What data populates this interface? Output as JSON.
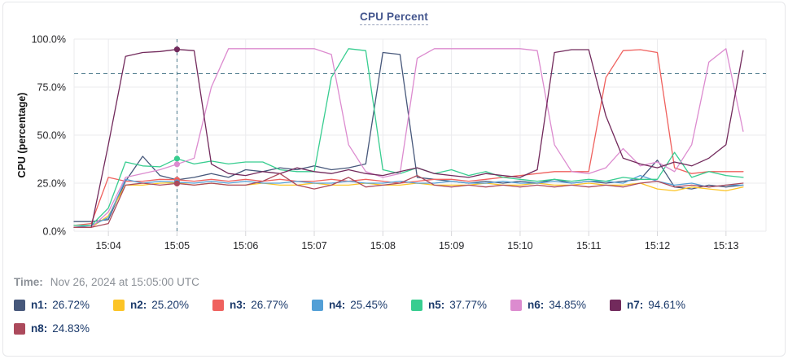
{
  "card": {
    "title": "CPU Percent"
  },
  "time_row": {
    "label": "Time:",
    "value": "Nov 26, 2024 at 15:05:00 UTC"
  },
  "colors": {
    "title_text": "#44568e",
    "legend_text": "#1b3a6b",
    "muted_text": "#8b9097",
    "axis_text": "#27272a",
    "grid": "#ebebee",
    "tick": "#d7d7da",
    "crosshair": "#4d7a8c",
    "threshold": "#4d7a8c",
    "card_border": "#e6e7ea"
  },
  "chart_data": {
    "type": "line",
    "title": "CPU Percent",
    "ylabel": "CPU (percentage)",
    "xlabel": "",
    "ylim": [
      0,
      100
    ],
    "grid": true,
    "legend_position": "bottom",
    "y_ticks": [
      {
        "value": 100,
        "label": "100.0%"
      },
      {
        "value": 75,
        "label": "75.0%"
      },
      {
        "value": 50,
        "label": "50.0%"
      },
      {
        "value": 25,
        "label": "25.0%"
      },
      {
        "value": 0,
        "label": "0.0%"
      }
    ],
    "x_ticks": [
      {
        "sec": 30,
        "label": "15:04"
      },
      {
        "sec": 90,
        "label": "15:05"
      },
      {
        "sec": 150,
        "label": "15:06"
      },
      {
        "sec": 210,
        "label": "15:07"
      },
      {
        "sec": 270,
        "label": "15:08"
      },
      {
        "sec": 330,
        "label": "15:09"
      },
      {
        "sec": 390,
        "label": "15:10"
      },
      {
        "sec": 450,
        "label": "15:11"
      },
      {
        "sec": 510,
        "label": "15:12"
      },
      {
        "sec": 570,
        "label": "15:13"
      }
    ],
    "x_domain_sec": [
      0,
      605
    ],
    "sample_step_sec": 15,
    "threshold_percent": 82,
    "crosshair": {
      "time_sec": 90,
      "time_label": "15:05",
      "point_index": 6
    },
    "series": [
      {
        "name": "n1",
        "color": "#47587b",
        "legend_value": "26.72%",
        "values": [
          5,
          5,
          6,
          26,
          39,
          29,
          26.72,
          28,
          30,
          28,
          32,
          31,
          33,
          32,
          34,
          32,
          33,
          35,
          93,
          92,
          28,
          27,
          26,
          25,
          26,
          25,
          26,
          25,
          27,
          25,
          26,
          25,
          26,
          27,
          37,
          23,
          22,
          24,
          23,
          24
        ]
      },
      {
        "name": "n2",
        "color": "#fcc426",
        "legend_value": "25.20%",
        "values": [
          2,
          2,
          8,
          24,
          24,
          25,
          25.2,
          24,
          25,
          24,
          24,
          25,
          24,
          24,
          25,
          24,
          24,
          25,
          24,
          24,
          25,
          24,
          24,
          24,
          25,
          24,
          24,
          25,
          24,
          24,
          25,
          24,
          24,
          25,
          22,
          21,
          23,
          22,
          21,
          23
        ]
      },
      {
        "name": "n3",
        "color": "#ef615e",
        "legend_value": "26.77%",
        "values": [
          3,
          4,
          28,
          26,
          26,
          27,
          26.77,
          26,
          27,
          26,
          27,
          26,
          27,
          26,
          26,
          27,
          26,
          27,
          26,
          25,
          26,
          27,
          27,
          26,
          27,
          28,
          29,
          30,
          31,
          31,
          31,
          80,
          94,
          94.5,
          93,
          33,
          30,
          31,
          31,
          31
        ]
      },
      {
        "name": "n4",
        "color": "#539fd6",
        "legend_value": "25.45%",
        "values": [
          2,
          3,
          7,
          27,
          25,
          26,
          25.45,
          25,
          26,
          25,
          26,
          25,
          25,
          26,
          25,
          25,
          26,
          25,
          25,
          26,
          25,
          25,
          26,
          25,
          25,
          26,
          25,
          25,
          26,
          25,
          26,
          26,
          25,
          29,
          26,
          24,
          25,
          23,
          24,
          24
        ]
      },
      {
        "name": "n5",
        "color": "#38cd90",
        "legend_value": "37.77%",
        "values": [
          3,
          3,
          12,
          36,
          34,
          33.5,
          37.77,
          35,
          36.5,
          35,
          36,
          36,
          32,
          31,
          31,
          80,
          95,
          94,
          32,
          30,
          33,
          30,
          32,
          29,
          31,
          28,
          27,
          26,
          27,
          26,
          27,
          26,
          28,
          27,
          27,
          41,
          28,
          31,
          29,
          28
        ]
      },
      {
        "name": "n6",
        "color": "#dc8bcf",
        "legend_value": "34.85%",
        "values": [
          2,
          2,
          10,
          28,
          30,
          32,
          34.85,
          38,
          75,
          95,
          95,
          95,
          95,
          95,
          95,
          92,
          45,
          31,
          28,
          30,
          90,
          95,
          95,
          95,
          95,
          95,
          95,
          94,
          45,
          31,
          30,
          33,
          43,
          34,
          36,
          31,
          45,
          88,
          95,
          52
        ]
      },
      {
        "name": "n7",
        "color": "#722a5c",
        "legend_value": "94.61%",
        "values": [
          2,
          2,
          45,
          91,
          93,
          93.5,
          94.61,
          94,
          35,
          30,
          29,
          31,
          30,
          33,
          31,
          30,
          32,
          30,
          29,
          31,
          33,
          30,
          29,
          28,
          30,
          29,
          28,
          32,
          93,
          94.5,
          94.5,
          60,
          38,
          35,
          33,
          36,
          34,
          38,
          45,
          94
        ]
      },
      {
        "name": "n8",
        "color": "#ac4a5c",
        "legend_value": "24.83%",
        "values": [
          2,
          2,
          4,
          24,
          25,
          24,
          24.83,
          24,
          25,
          24,
          24,
          26,
          30,
          24,
          22,
          24,
          28,
          23,
          24,
          25,
          29,
          24,
          23,
          24,
          23,
          24,
          23,
          24,
          23,
          24,
          23,
          24,
          23,
          25,
          26,
          23,
          24,
          23,
          24,
          25
        ]
      }
    ]
  }
}
